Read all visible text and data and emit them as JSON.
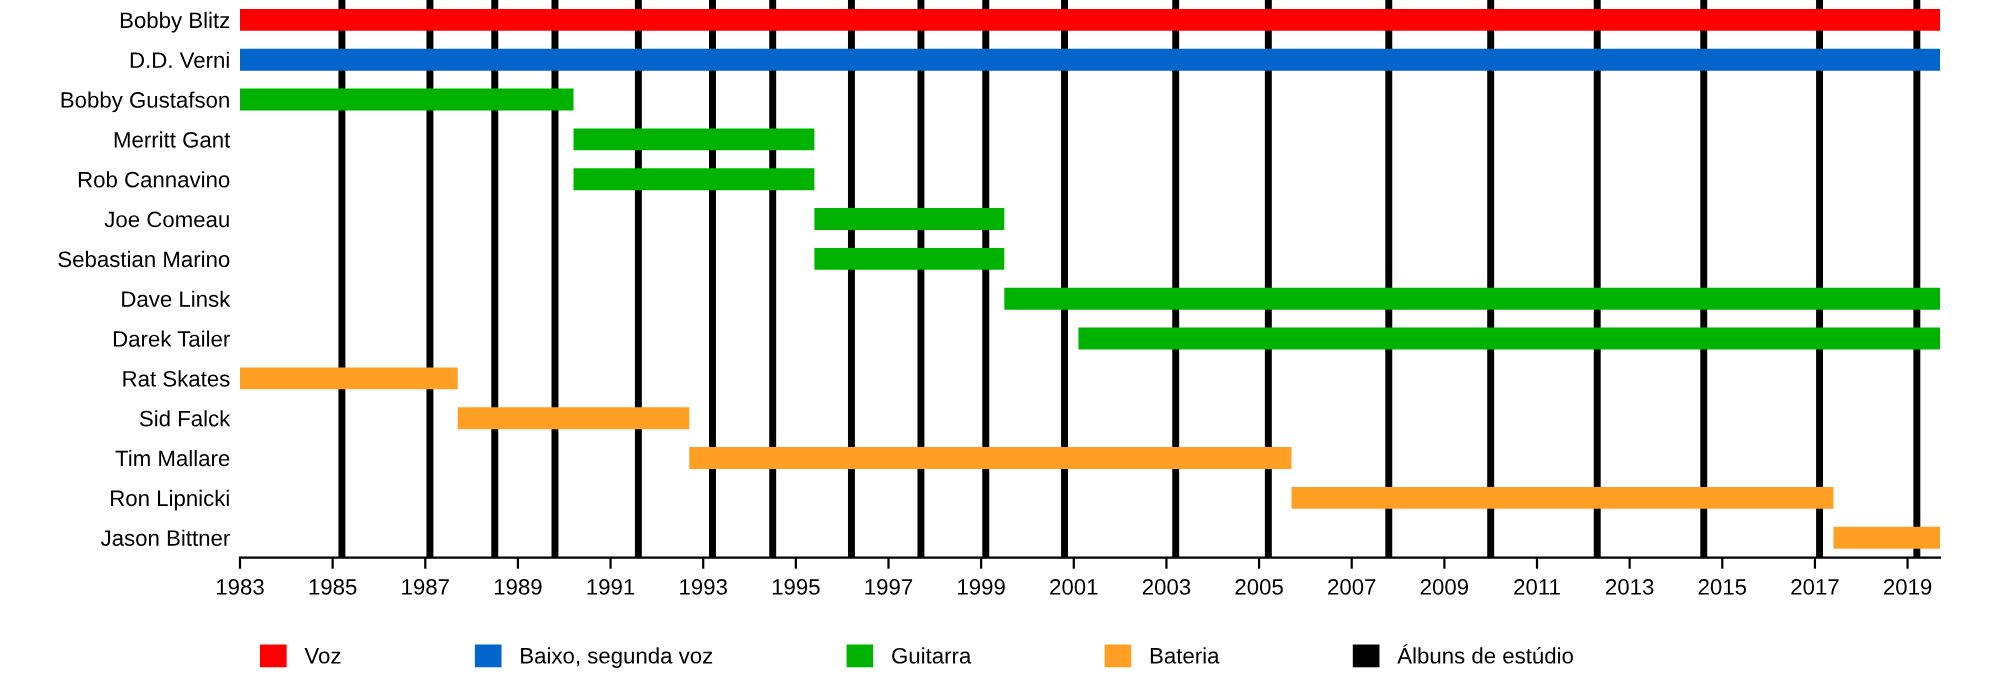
{
  "chart_data": {
    "type": "bar",
    "orientation": "horizontal",
    "categories": [
      "Bobby Blitz",
      "D.D. Verni",
      "Bobby Gustafson",
      "Merritt Gant",
      "Rob Cannavino",
      "Joe Comeau",
      "Sebastian Marino",
      "Dave Linsk",
      "Darek Tailer",
      "Rat Skates",
      "Sid Falck",
      "Tim Mallare",
      "Ron Lipnicki",
      "Jason Bittner"
    ],
    "series": [
      {
        "name": "Voz",
        "color": "#ff0000",
        "base": [
          1983,
          null,
          null,
          null,
          null,
          null,
          null,
          null,
          null,
          null,
          null,
          null,
          null,
          null
        ],
        "values": [
          36.7,
          null,
          null,
          null,
          null,
          null,
          null,
          null,
          null,
          null,
          null,
          null,
          null,
          null
        ]
      },
      {
        "name": "Baixo, segunda voz",
        "color": "#0066cc",
        "base": [
          null,
          1983,
          null,
          null,
          null,
          null,
          null,
          null,
          null,
          null,
          null,
          null,
          null,
          null
        ],
        "values": [
          null,
          36.7,
          null,
          null,
          null,
          null,
          null,
          null,
          null,
          null,
          null,
          null,
          null,
          null
        ]
      },
      {
        "name": "Guitarra",
        "color": "#00b300",
        "base": [
          null,
          null,
          1983,
          1990.2,
          1990.2,
          1995.4,
          1995.4,
          1999.5,
          2001.1,
          null,
          null,
          null,
          null,
          null
        ],
        "values": [
          null,
          null,
          7.2,
          5.2,
          5.2,
          4.1,
          4.1,
          20.2,
          18.6,
          null,
          null,
          null,
          null,
          null
        ]
      },
      {
        "name": "Bateria",
        "color": "#ffa024",
        "base": [
          null,
          null,
          null,
          null,
          null,
          null,
          null,
          null,
          null,
          1983,
          1987.7,
          1992.7,
          2005.7,
          2017.4
        ],
        "values": [
          null,
          null,
          null,
          null,
          null,
          null,
          null,
          null,
          null,
          4.7,
          5.0,
          13.0,
          11.7,
          2.3
        ]
      }
    ],
    "ref_lines": [
      {
        "axis": "x",
        "value": 1985.2,
        "label": "Álbuns de estúdio",
        "color": "#000000"
      },
      {
        "axis": "x",
        "value": 1987.1,
        "color": "#000000"
      },
      {
        "axis": "x",
        "value": 1988.5,
        "color": "#000000"
      },
      {
        "axis": "x",
        "value": 1989.8,
        "color": "#000000"
      },
      {
        "axis": "x",
        "value": 1991.6,
        "color": "#000000"
      },
      {
        "axis": "x",
        "value": 1993.2,
        "color": "#000000"
      },
      {
        "axis": "x",
        "value": 1994.5,
        "color": "#000000"
      },
      {
        "axis": "x",
        "value": 1996.2,
        "color": "#000000"
      },
      {
        "axis": "x",
        "value": 1997.7,
        "color": "#000000"
      },
      {
        "axis": "x",
        "value": 1999.1,
        "color": "#000000"
      },
      {
        "axis": "x",
        "value": 2000.8,
        "color": "#000000"
      },
      {
        "axis": "x",
        "value": 2003.2,
        "color": "#000000"
      },
      {
        "axis": "x",
        "value": 2005.2,
        "color": "#000000"
      },
      {
        "axis": "x",
        "value": 2007.8,
        "color": "#000000"
      },
      {
        "axis": "x",
        "value": 2010.0,
        "color": "#000000"
      },
      {
        "axis": "x",
        "value": 2012.3,
        "color": "#000000"
      },
      {
        "axis": "x",
        "value": 2014.6,
        "color": "#000000"
      },
      {
        "axis": "x",
        "value": 2017.1,
        "color": "#000000"
      },
      {
        "axis": "x",
        "value": 2019.2,
        "color": "#000000"
      }
    ],
    "xlim": [
      1983,
      2019.7
    ],
    "xticks": [
      1983,
      1985,
      1987,
      1989,
      1991,
      1993,
      1995,
      1997,
      1999,
      2001,
      2003,
      2005,
      2007,
      2009,
      2011,
      2013,
      2015,
      2017,
      2019
    ],
    "legend": "bottom",
    "grid": false
  }
}
